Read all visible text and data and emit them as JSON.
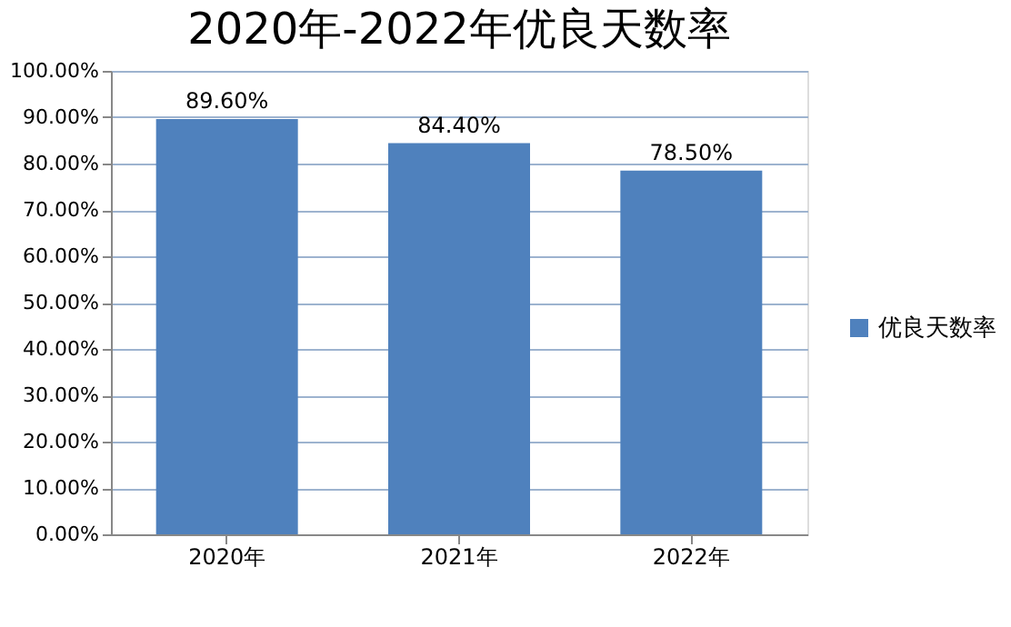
{
  "chart_data": {
    "type": "bar",
    "title": "2020年-2022年优良天数率",
    "categories": [
      "2020年",
      "2021年",
      "2022年"
    ],
    "series": [
      {
        "name": "优良天数率",
        "color": "#4f81bd",
        "values": [
          89.6,
          84.4,
          78.5
        ],
        "value_labels": [
          "89.60%",
          "84.40%",
          "78.50%"
        ]
      }
    ],
    "ylim": [
      0,
      100
    ],
    "yticks": [
      {
        "value": 0,
        "label": "0.00%"
      },
      {
        "value": 10,
        "label": "10.00%"
      },
      {
        "value": 20,
        "label": "20.00%"
      },
      {
        "value": 30,
        "label": "30.00%"
      },
      {
        "value": 40,
        "label": "40.00%"
      },
      {
        "value": 50,
        "label": "50.00%"
      },
      {
        "value": 60,
        "label": "60.00%"
      },
      {
        "value": 70,
        "label": "70.00%"
      },
      {
        "value": 80,
        "label": "80.00%"
      },
      {
        "value": 90,
        "label": "90.00%"
      },
      {
        "value": 100,
        "label": "100.00%"
      }
    ],
    "grid": "y",
    "legend": "right"
  }
}
